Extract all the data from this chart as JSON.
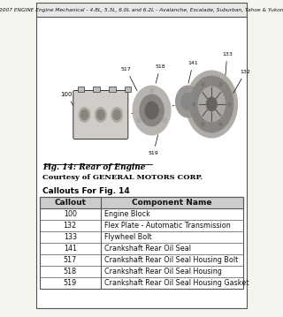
{
  "title": "2007 ENGINE Engine Mechanical - 4.8L, 5.3L, 6.0L and 6.2L - Avalanche, Escalade, Suburban, Tahoe & Yukon",
  "fig_caption": "Fig. 14: Rear of Engine",
  "fig_credit": "Courtesy of GENERAL MOTORS CORP.",
  "table_title": "Callouts For Fig. 14",
  "col_headers": [
    "Callout",
    "Component Name"
  ],
  "rows": [
    [
      "100",
      "Engine Block"
    ],
    [
      "132",
      "Flex Plate - Automatic Transmission"
    ],
    [
      "133",
      "Flywheel Bolt"
    ],
    [
      "141",
      "Crankshaft Rear Oil Seal"
    ],
    [
      "517",
      "Crankshaft Rear Oil Seal Housing Bolt"
    ],
    [
      "518",
      "Crankshaft Rear Oil Seal Housing"
    ],
    [
      "519",
      "Crankshaft Rear Oil Seal Housing Gasket"
    ]
  ],
  "bg_color": "#f5f5f0",
  "border_color": "#555555",
  "header_bg": "#cccccc",
  "table_bg": "#ffffff",
  "text_color": "#111111"
}
